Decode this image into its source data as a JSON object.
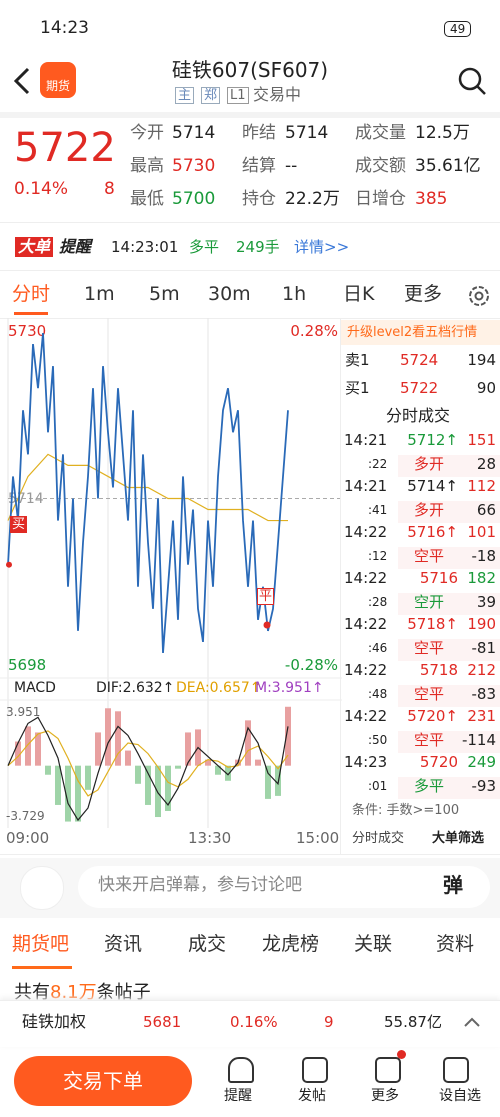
{
  "status_bar": {
    "time": "14:23",
    "battery": "49"
  },
  "header": {
    "logo": "期货",
    "title": "硅铁607(SF607)",
    "tags": [
      "主",
      "郑",
      "L1"
    ],
    "status": "交易中"
  },
  "quote": {
    "price": "5722",
    "change_pct": "0.14%",
    "change": "8",
    "fields": [
      {
        "label": "今开",
        "value": "5714",
        "color": "#222"
      },
      {
        "label": "昨结",
        "value": "5714",
        "color": "#222"
      },
      {
        "label": "成交量",
        "value": "12.5万",
        "color": "#222"
      },
      {
        "label": "最高",
        "value": "5730",
        "color": "#e02a24"
      },
      {
        "label": "结算",
        "value": "--",
        "color": "#222"
      },
      {
        "label": "成交额",
        "value": "35.61亿",
        "color": "#222"
      },
      {
        "label": "最低",
        "value": "5700",
        "color": "#1a9a3a"
      },
      {
        "label": "持仓",
        "value": "22.2万",
        "color": "#222"
      },
      {
        "label": "日增仓",
        "value": "385",
        "color": "#e02a24"
      }
    ]
  },
  "alert": {
    "badge": [
      "大单",
      "提醒"
    ],
    "time": "14:23:01",
    "action": "多平",
    "volume": "249手",
    "link": "详情>>"
  },
  "tabs": [
    "分时",
    "1m",
    "5m",
    "30m",
    "1h",
    "日K",
    "更多"
  ],
  "chart": {
    "type": "line",
    "price_max": "5730",
    "pct_max": "0.28%",
    "price_min": "5698",
    "pct_min": "-0.28%",
    "prev_settle": "5714",
    "ylim": [
      5698,
      5730
    ],
    "price": [
      5708,
      5716,
      5712,
      5722,
      5718,
      5728,
      5724,
      5729,
      5720,
      5726,
      5712,
      5718,
      5706,
      5714,
      5702,
      5710,
      5716,
      5724,
      5714,
      5726,
      5720,
      5715,
      5724,
      5718,
      5712,
      5722,
      5706,
      5718,
      5710,
      5704,
      5714,
      5700,
      5706,
      5712,
      5703,
      5716,
      5708,
      5713,
      5704,
      5701,
      5712,
      5706,
      5716,
      5722,
      5724,
      5720,
      5722,
      5712,
      5706,
      5712,
      5703,
      5706,
      5702,
      5704,
      5710,
      5716,
      5722
    ],
    "average": [
      5712,
      5716,
      5718,
      5717,
      5717,
      5716,
      5715,
      5715,
      5714,
      5714,
      5713,
      5713,
      5713,
      5712,
      5712
    ],
    "markers": [
      "买",
      "平"
    ],
    "x_labels": [
      "09:00",
      "13:30",
      "15:00"
    ]
  },
  "macd": {
    "label": "MACD",
    "dif": "DIF:2.632↑",
    "dea": "DEA:0.657↑",
    "m": "M:3.951↑",
    "max": "3.951",
    "min": "-3.729",
    "ylim": [
      -3.729,
      3.951
    ],
    "dif_values": [
      0,
      1.5,
      2.8,
      3.2,
      2.0,
      0.5,
      -2.5,
      -3.6,
      -2.8,
      -0.5,
      1.5,
      2.6,
      2.0,
      0.8,
      -0.5,
      -1.8,
      -2.6,
      -1.5,
      0.2,
      1.2,
      0.6,
      0.0,
      -0.6,
      0.2,
      2.5,
      1.5,
      -0.5,
      -1.2,
      2.6
    ],
    "dea_values": [
      0,
      0.6,
      1.4,
      2.1,
      2.3,
      1.8,
      0.5,
      -1.0,
      -2.0,
      -1.6,
      -0.4,
      0.8,
      1.5,
      1.4,
      0.8,
      -0.1,
      -1.1,
      -1.4,
      -0.9,
      0.0,
      0.4,
      0.3,
      -0.1,
      0.0,
      1.0,
      1.3,
      0.6,
      -0.2,
      0.7
    ],
    "m_values": [
      0,
      1.6,
      2.6,
      2.2,
      -0.6,
      -2.6,
      -3.7,
      -3.7,
      -1.6,
      2.2,
      3.8,
      3.6,
      1.0,
      -1.2,
      -2.6,
      -3.4,
      -3.0,
      -0.2,
      2.2,
      2.4,
      0.4,
      -0.6,
      -1.0,
      0.4,
      3.0,
      0.4,
      -2.2,
      -2.0,
      3.9
    ]
  },
  "side": {
    "upgrade": "升级level2看五档行情",
    "book": [
      {
        "label": "卖1",
        "price": "5724",
        "volume": "194"
      },
      {
        "label": "买1",
        "price": "5722",
        "volume": "90"
      }
    ],
    "trades_title": "分时成交",
    "trades": [
      {
        "time": "14:21",
        "sec": ":22",
        "price": "5712↑",
        "volume": "151",
        "kind": "多开",
        "qty": "28",
        "colors": [
          "#1a9a3a",
          "#e02a24",
          "#e02a24"
        ]
      },
      {
        "time": "14:21",
        "sec": ":41",
        "price": "5714↑",
        "volume": "112",
        "kind": "多开",
        "qty": "66",
        "colors": [
          "#222",
          "#e02a24",
          "#e02a24"
        ]
      },
      {
        "time": "14:22",
        "sec": ":12",
        "price": "5716↑",
        "volume": "101",
        "kind": "空平",
        "qty": "-18",
        "colors": [
          "#e02a24",
          "#e02a24",
          "#e02a24"
        ]
      },
      {
        "time": "14:22",
        "sec": ":28",
        "price": "5716",
        "volume": "182",
        "kind": "空开",
        "qty": "39",
        "colors": [
          "#e02a24",
          "#1a9a3a",
          "#1a9a3a"
        ]
      },
      {
        "time": "14:22",
        "sec": ":46",
        "price": "5718↑",
        "volume": "190",
        "kind": "空平",
        "qty": "-81",
        "colors": [
          "#e02a24",
          "#e02a24",
          "#e02a24"
        ]
      },
      {
        "time": "14:22",
        "sec": ":48",
        "price": "5718",
        "volume": "212",
        "kind": "空平",
        "qty": "-83",
        "colors": [
          "#e02a24",
          "#e02a24",
          "#e02a24"
        ]
      },
      {
        "time": "14:22",
        "sec": ":50",
        "price": "5720↑",
        "volume": "231",
        "kind": "空平",
        "qty": "-114",
        "colors": [
          "#e02a24",
          "#e02a24",
          "#e02a24"
        ]
      },
      {
        "time": "14:23",
        "sec": ":01",
        "price": "5720",
        "volume": "249",
        "kind": "多平",
        "qty": "-93",
        "colors": [
          "#e02a24",
          "#1a9a3a",
          "#1a9a3a"
        ]
      }
    ],
    "condition": "条件: 手数>=100",
    "buttons": [
      "分时成交",
      "大单筛选"
    ]
  },
  "comment": {
    "placeholder": "快来开启弹幕，参与讨论吧",
    "button": "弹"
  },
  "section_tabs": [
    "期货吧",
    "资讯",
    "成交",
    "龙虎榜",
    "关联",
    "资料"
  ],
  "posts": {
    "prefix": "共有",
    "count": "8.1万",
    "suffix": "条帖子"
  },
  "index_row": {
    "name": "硅铁加权",
    "price": "5681",
    "pct": "0.16%",
    "change": "9",
    "amount": "55.87亿"
  },
  "bottom": {
    "trade": "交易下单",
    "items": [
      "提醒",
      "发帖",
      "更多",
      "设自选"
    ]
  }
}
